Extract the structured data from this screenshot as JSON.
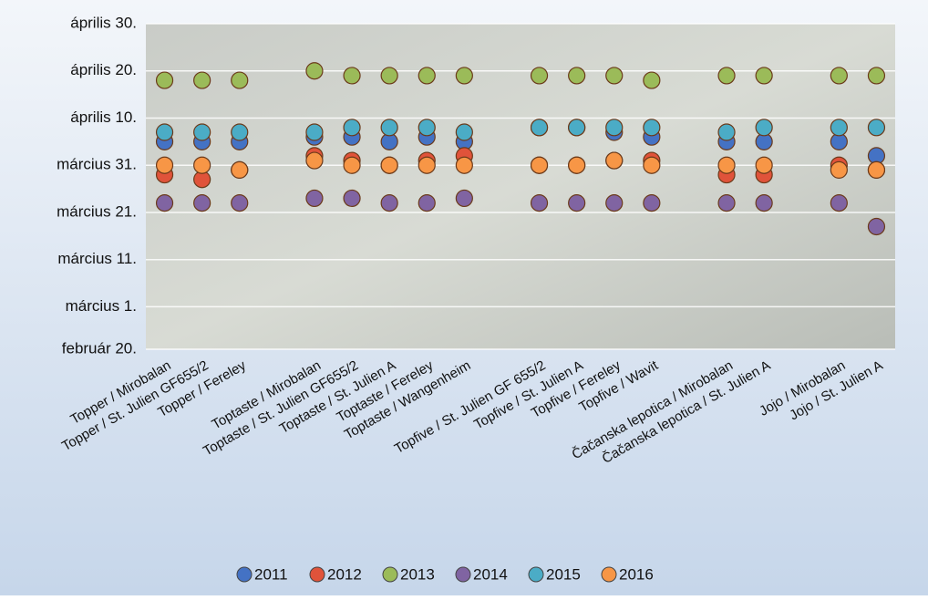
{
  "chart_data": {
    "type": "dot",
    "categories": [
      "Topper / Mirobalan",
      "Topper / St. Julien GF655/2",
      "Topper / Fereley",
      null,
      "Toptaste / Mirobalan",
      "Toptaste / St. Julien GF655/2",
      "Toptaste / St. Julien A",
      "Toptaste / Fereley",
      "Toptaste / Wangenheim",
      null,
      "Topfive / St. Julien GF 655/2",
      "Topfive / St. Julien A",
      "Topfive / Fereley",
      "Topfive / Wavit",
      null,
      "Čačanska lepotica / Mirobalan",
      "Čačanska lepotica / St. Julien A",
      null,
      "Jojo / Mirobalan",
      "Jojo / St. Julien A"
    ],
    "series": [
      {
        "name": "2011",
        "color": "#4472c4",
        "values": [
          95,
          95,
          95,
          null,
          96,
          96,
          95,
          96,
          95,
          null,
          98,
          98,
          97,
          96,
          null,
          95,
          95,
          null,
          95,
          92
        ]
      },
      {
        "name": "2012",
        "color": "#e0533a",
        "values": [
          88,
          87,
          89,
          null,
          92,
          91,
          90,
          91,
          92,
          null,
          90,
          90,
          91,
          91,
          null,
          88,
          88,
          null,
          90,
          89
        ]
      },
      {
        "name": "2013",
        "color": "#9bbb59",
        "values": [
          108,
          108,
          108,
          null,
          110,
          109,
          109,
          109,
          109,
          null,
          109,
          109,
          109,
          108,
          null,
          109,
          109,
          null,
          109,
          109
        ]
      },
      {
        "name": "2014",
        "color": "#8064a2",
        "values": [
          82,
          82,
          82,
          null,
          83,
          83,
          82,
          82,
          83,
          null,
          82,
          82,
          82,
          82,
          null,
          82,
          82,
          null,
          82,
          77
        ]
      },
      {
        "name": "2015",
        "color": "#4bacc6",
        "values": [
          97,
          97,
          97,
          null,
          97,
          98,
          98,
          98,
          97,
          null,
          98,
          98,
          98,
          98,
          null,
          97,
          98,
          null,
          98,
          98
        ]
      },
      {
        "name": "2016",
        "color": "#f79646",
        "values": [
          90,
          90,
          89,
          null,
          91,
          90,
          90,
          90,
          90,
          null,
          90,
          90,
          91,
          90,
          null,
          90,
          90,
          null,
          89,
          89
        ]
      }
    ],
    "ylim": [
      51,
      120
    ],
    "yticks": [
      {
        "value": 51,
        "label": "február 20."
      },
      {
        "value": 60,
        "label": "március 1."
      },
      {
        "value": 70,
        "label": "március 11."
      },
      {
        "value": 80,
        "label": "március 21."
      },
      {
        "value": 90,
        "label": "március 31."
      },
      {
        "value": 100,
        "label": "április 10."
      },
      {
        "value": 110,
        "label": "április 20."
      },
      {
        "value": 120,
        "label": "április 30."
      }
    ],
    "grid": true
  }
}
